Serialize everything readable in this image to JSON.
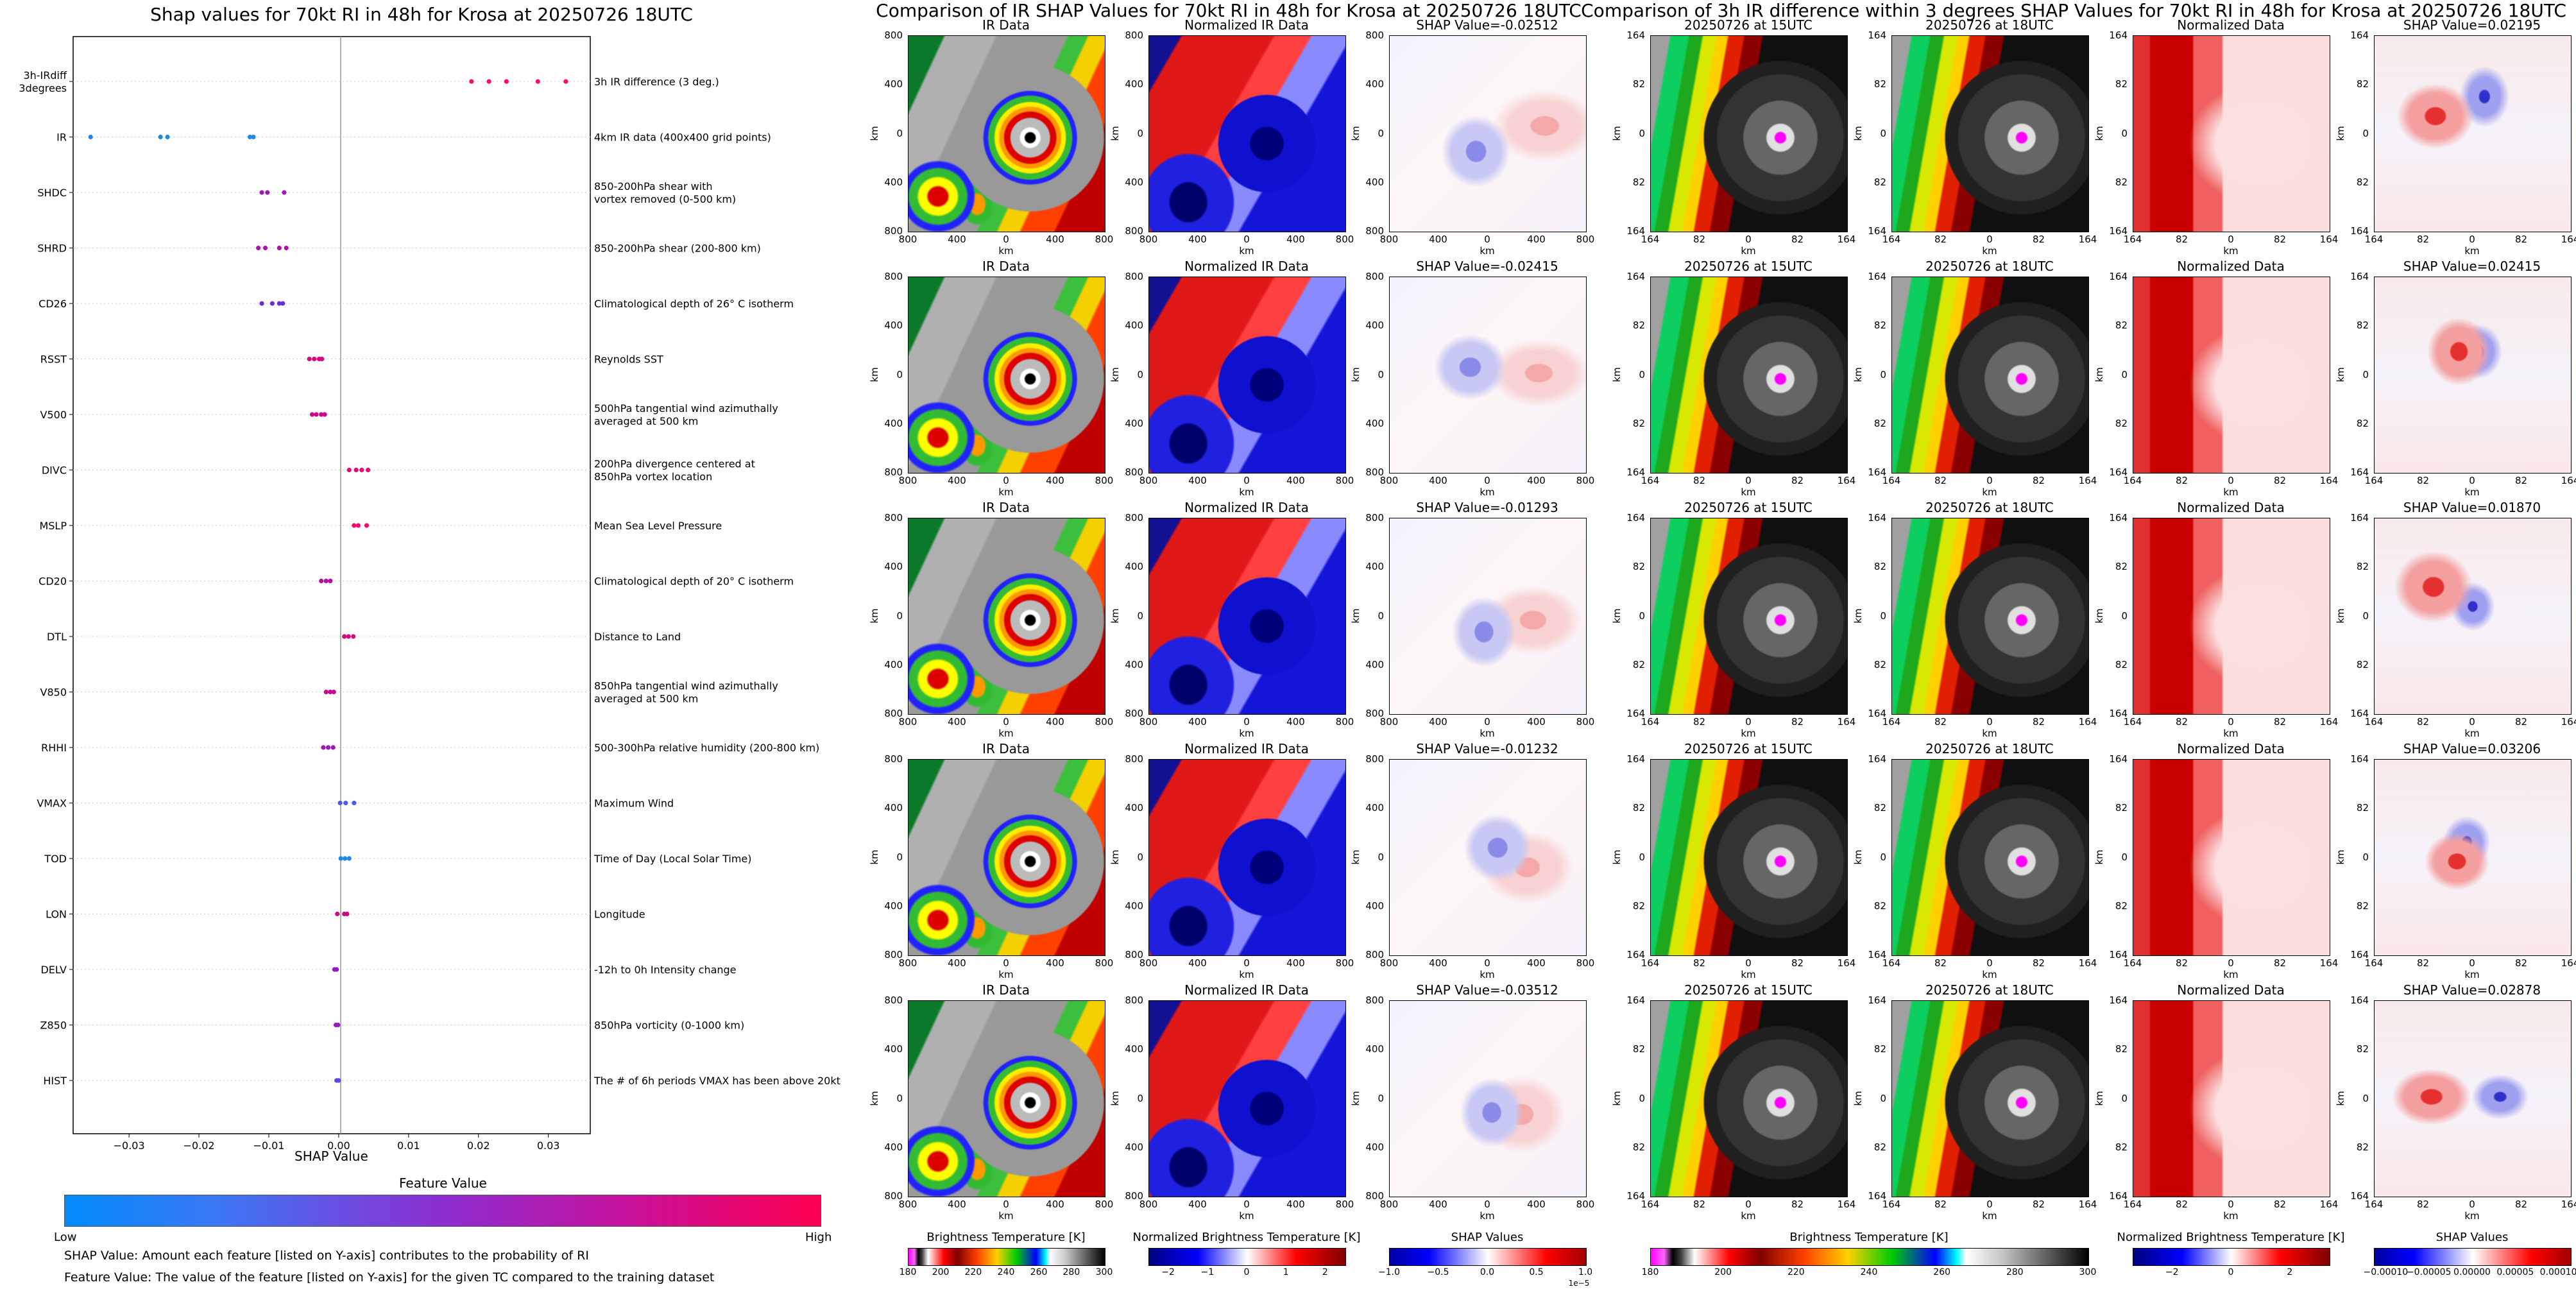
{
  "chart_data": [
    {
      "type": "scatter",
      "title": "Shap values for 70kt RI in 48h for Krosa at 20250726 18UTC",
      "xlabel": "SHAP Value",
      "xlim": [
        -0.038,
        0.036
      ],
      "xticks": [
        "−0.03",
        "−0.02",
        "−0.01",
        "0.00",
        "0.01",
        "0.02",
        "0.03"
      ],
      "xtick_values": [
        -0.03,
        -0.02,
        -0.01,
        0.0,
        0.01,
        0.02,
        0.03
      ],
      "grid": "horizontal dotted",
      "features": [
        {
          "name": "3h-IRdiff\n3degrees",
          "description": "3h IR difference (3 deg.)",
          "shap": [
            0.019,
            0.0215,
            0.024,
            0.0285,
            0.0325
          ],
          "color": "#ff0a6c"
        },
        {
          "name": "IR",
          "description": "4km IR data (400x400 grid points)",
          "shap": [
            -0.0355,
            -0.0255,
            -0.0245,
            -0.0127,
            -0.0122
          ],
          "color": "#1e88e5"
        },
        {
          "name": "SHDC",
          "description": "850-200hPa shear with\nvortex removed (0-500 km)",
          "shap": [
            -0.011,
            -0.0102,
            -0.0078
          ],
          "color": "#a016b8"
        },
        {
          "name": "SHRD",
          "description": "850-200hPa shear (200-800 km)",
          "shap": [
            -0.0115,
            -0.0105,
            -0.0085,
            -0.0075
          ],
          "color": "#b011a8"
        },
        {
          "name": "CD26",
          "description": "Climatological depth of 26° C isotherm",
          "shap": [
            -0.011,
            -0.0095,
            -0.0085,
            -0.008
          ],
          "color": "#6a2ed8"
        },
        {
          "name": "RSST",
          "description": "Reynolds SST",
          "shap": [
            -0.0042,
            -0.0035,
            -0.0028,
            -0.0024
          ],
          "color": "#d8097c"
        },
        {
          "name": "V500",
          "description": "500hPa tangential wind azimuthally\naveraged at 500 km",
          "shap": [
            -0.0038,
            -0.0032,
            -0.0025,
            -0.002
          ],
          "color": "#cc0a88"
        },
        {
          "name": "DIVC",
          "description": "200hPa divergence centered at\n850hPa vortex location",
          "shap": [
            0.0015,
            0.0025,
            0.0033,
            0.0042
          ],
          "color": "#e6087a"
        },
        {
          "name": "MSLP",
          "description": "Mean Sea Level Pressure",
          "shap": [
            0.0022,
            0.0028,
            0.004
          ],
          "color": "#f2086f"
        },
        {
          "name": "CD20",
          "description": "Climatological depth of 20° C isotherm",
          "shap": [
            -0.0025,
            -0.0018,
            -0.0012
          ],
          "color": "#b80e9e"
        },
        {
          "name": "DTL",
          "description": "Distance to Land",
          "shap": [
            0.0008,
            0.0014,
            0.0021
          ],
          "color": "#d9087f"
        },
        {
          "name": "V850",
          "description": "850hPa tangential wind azimuthally\naveraged at 500 km",
          "shap": [
            -0.0018,
            -0.0012,
            -0.0007
          ],
          "color": "#c20c93"
        },
        {
          "name": "RHHI",
          "description": "500-300hPa relative humidity (200-800 km)",
          "shap": [
            -0.0022,
            -0.0015,
            -0.0008
          ],
          "color": "#9a18be"
        },
        {
          "name": "VMAX",
          "description": "Maximum Wind",
          "shap": [
            0.0002,
            0.001,
            0.0022
          ],
          "color": "#4c5af0"
        },
        {
          "name": "TOD",
          "description": "Time of Day (Local Solar Time)",
          "shap": [
            0.0003,
            0.0009,
            0.0015
          ],
          "color": "#1e88e5"
        },
        {
          "name": "LON",
          "description": "Longitude",
          "shap": [
            -0.0002,
            0.0008,
            0.0012
          ],
          "color": "#cc0a88"
        },
        {
          "name": "DELV",
          "description": "-12h to 0h Intensity change",
          "shap": [
            -0.0006,
            -0.0003
          ],
          "color": "#8a1cc6"
        },
        {
          "name": "Z850",
          "description": "850hPa vorticity (0-1000 km)",
          "shap": [
            -0.0004,
            -0.0001
          ],
          "color": "#9a18be"
        },
        {
          "name": "HIST",
          "description": "The # of 6h periods VMAX has been above 20kt",
          "shap": [
            -0.0003,
            0.0
          ],
          "color": "#5a4ae8"
        }
      ],
      "colorbar": {
        "label": "Feature Value",
        "low": "Low",
        "high": "High",
        "colors": [
          "#008bfb",
          "#ff0052"
        ]
      },
      "footnotes": [
        "SHAP Value: Amount each feature [listed on Y-axis] contributes to the probability of RI",
        "Feature Value: The value of the feature [listed on Y-axis] for the given TC compared to the training dataset"
      ]
    },
    {
      "type": "heatmap",
      "title": "Comparison of IR SHAP Values for 70kt RI in 48h for Krosa at 20250726 18UTC",
      "columns": [
        "IR Data",
        "Normalized IR Data",
        "SHAP Value"
      ],
      "shap_values": [
        "-0.02512",
        "-0.02415",
        "-0.01293",
        "-0.01232",
        "-0.03512"
      ],
      "tick_labels": [
        "800",
        "400",
        "0",
        "400",
        "800"
      ],
      "axis_label": "km",
      "colorbars": [
        {
          "label": "Brightness Temperature [K]",
          "ticks": [
            "180",
            "200",
            "220",
            "240",
            "260",
            "280",
            "300"
          ]
        },
        {
          "label": "Normalized Brightness Temperature [K]",
          "ticks": [
            "−2",
            "−1",
            "0",
            "1",
            "2"
          ]
        },
        {
          "label": "SHAP Values",
          "ticks": [
            "−1.0",
            "−0.5",
            "0.0",
            "0.5",
            "1.0"
          ],
          "offset": "1e−5"
        }
      ]
    },
    {
      "type": "heatmap",
      "title": "Comparison of 3h IR difference within 3 degrees SHAP Values for 70kt RI in 48h for Krosa at 20250726 18UTC",
      "columns": [
        "20250726 at 15UTC",
        "20250726 at 18UTC",
        "Normalized Data",
        "SHAP Value"
      ],
      "shap_values": [
        "0.02195",
        "0.02415",
        "0.01870",
        "0.03206",
        "0.02878"
      ],
      "tick_labels": [
        "164",
        "82",
        "0",
        "82",
        "164"
      ],
      "axis_label": "km",
      "colorbars": [
        {
          "label": "Brightness Temperature [K]",
          "ticks": [
            "180",
            "200",
            "220",
            "240",
            "260",
            "280",
            "300"
          ]
        },
        {
          "label": "Normalized Brightness Temperature [K]",
          "ticks": [
            "−2",
            "0",
            "2"
          ]
        },
        {
          "label": "SHAP Values",
          "ticks": [
            "−0.00010",
            "−0.00005",
            "0.00000",
            "0.00005",
            "0.00010"
          ]
        }
      ]
    }
  ],
  "labels": {
    "shap_value_prefix": "SHAP Value="
  },
  "colors": {
    "ir_gray": "#9a9a9a",
    "norm_red": "#e8141c",
    "norm_blue": "#1410c8",
    "shap_white": "#f7f2f2",
    "diff_pink": "#ff00ff"
  }
}
